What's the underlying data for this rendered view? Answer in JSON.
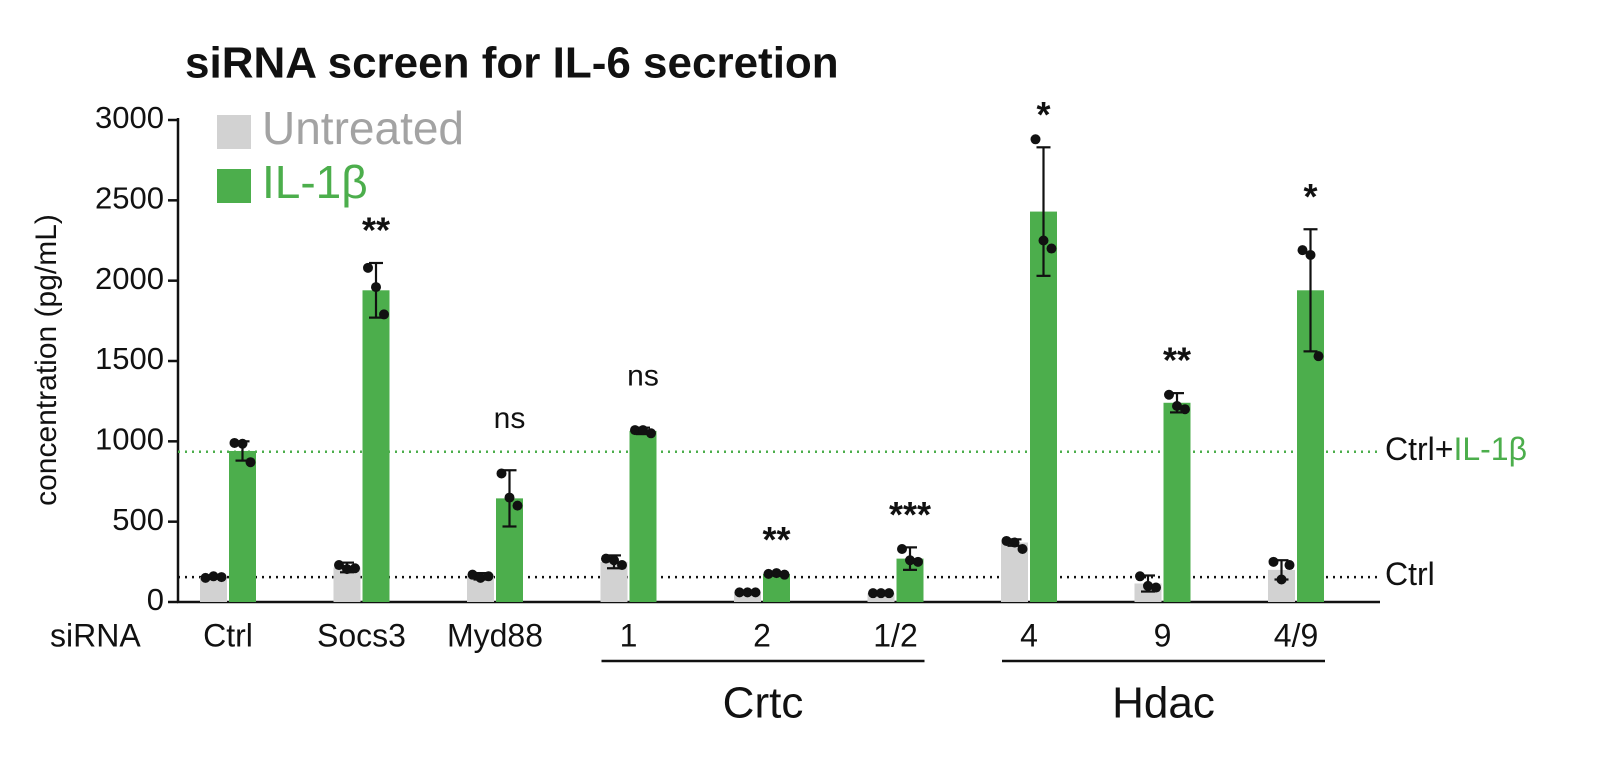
{
  "chart_data": {
    "type": "bar",
    "title": "siRNA screen for IL-6 secretion",
    "y_label": "concentration (pg/mL)",
    "x_row_label": "siRNA",
    "categories": [
      "Ctrl",
      "Socs3",
      "Myd88",
      "1",
      "2",
      "1/2",
      "4",
      "9",
      "4/9"
    ],
    "groups": [
      {
        "label": "Crtc",
        "start": 3,
        "end": 5
      },
      {
        "label": "Hdac",
        "start": 6,
        "end": 8
      }
    ],
    "series": [
      {
        "name": "Untreated",
        "color": "#d2d2d2",
        "text_color": "#a3a3a3",
        "values": [
          155,
          215,
          160,
          250,
          60,
          55,
          370,
          115,
          200
        ],
        "errors": [
          10,
          30,
          20,
          40,
          5,
          5,
          20,
          50,
          60
        ],
        "points": [
          [
            150,
            160,
            155
          ],
          [
            230,
            205,
            210
          ],
          [
            170,
            150,
            160
          ],
          [
            270,
            260,
            230
          ],
          [
            60,
            60,
            60
          ],
          [
            55,
            55,
            55
          ],
          [
            380,
            370,
            330
          ],
          [
            160,
            100,
            90
          ],
          [
            250,
            140,
            230
          ]
        ]
      },
      {
        "name": "IL-1β",
        "color": "#4cae4c",
        "text_color": "#4cae4c",
        "values": [
          940,
          1940,
          645,
          1065,
          175,
          270,
          2430,
          1240,
          1940
        ],
        "errors": [
          60,
          170,
          175,
          20,
          10,
          70,
          400,
          60,
          380
        ],
        "points": [
          [
            990,
            985,
            870
          ],
          [
            2080,
            1960,
            1790
          ],
          [
            800,
            650,
            600
          ],
          [
            1070,
            1070,
            1050
          ],
          [
            175,
            180,
            170
          ],
          [
            330,
            260,
            250
          ],
          [
            2880,
            2250,
            2200
          ],
          [
            1290,
            1220,
            1200
          ],
          [
            2190,
            2160,
            1530
          ]
        ]
      }
    ],
    "significance": [
      null,
      "**",
      "ns",
      "ns",
      "**",
      "***",
      "*",
      "**",
      "*"
    ],
    "reference_lines": [
      {
        "value": 935,
        "label": "Ctrl+",
        "label_highlight": "IL-1β",
        "color": "#4cae4c"
      },
      {
        "value": 155,
        "label": "Ctrl",
        "color": "#111111"
      }
    ],
    "ylim": [
      0,
      3000
    ],
    "yticks": [
      0,
      500,
      1000,
      1500,
      2000,
      2500,
      3000
    ]
  }
}
